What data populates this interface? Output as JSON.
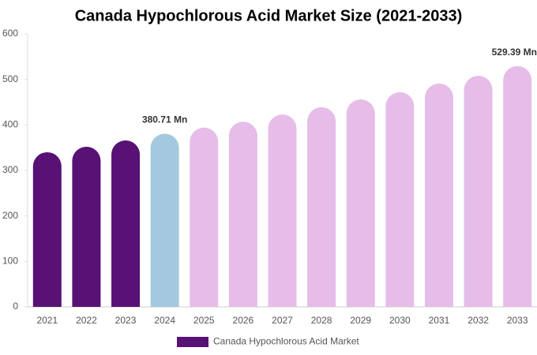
{
  "chart_data": {
    "type": "bar",
    "title": "Canada Hypochlorous Acid Market Size (2021-2033)",
    "categories": [
      "2021",
      "2022",
      "2023",
      "2024",
      "2025",
      "2026",
      "2027",
      "2028",
      "2029",
      "2030",
      "2031",
      "2032",
      "2033"
    ],
    "series": [
      {
        "name": "Canada Hypochlorous Acid Market",
        "color": "#581174",
        "colors": [
          "#581174",
          "#581174",
          "#581174",
          "#a4c9de",
          "#e6bde8",
          "#e6bde8",
          "#e6bde8",
          "#e6bde8",
          "#e6bde8",
          "#e6bde8",
          "#e6bde8",
          "#e6bde8",
          "#e6bde8"
        ],
        "values": [
          340,
          352,
          366,
          380.71,
          394,
          407,
          423,
          439,
          456,
          472,
          491,
          508,
          529.39
        ],
        "value_labels": [
          null,
          null,
          null,
          "380.71 Mn",
          null,
          null,
          null,
          null,
          null,
          null,
          null,
          null,
          "529.39 Mn"
        ]
      }
    ],
    "ylim": [
      0,
      600
    ],
    "yticks": [
      0,
      100,
      200,
      300,
      400,
      500,
      600
    ],
    "grid": false
  }
}
